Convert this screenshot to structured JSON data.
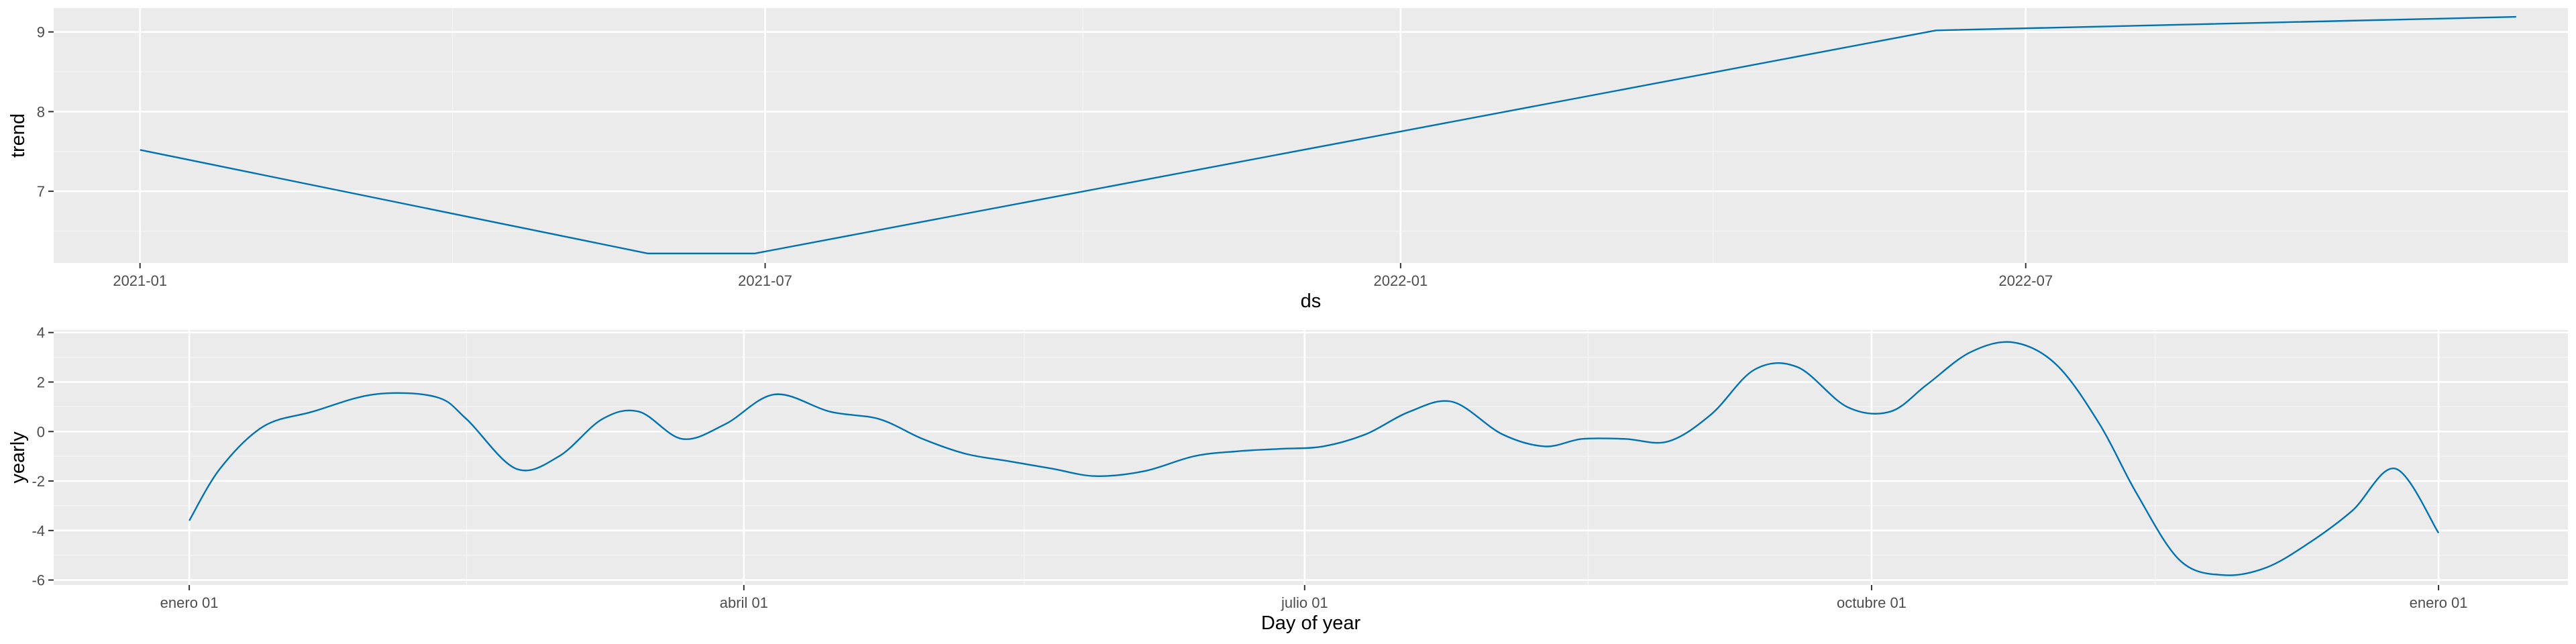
{
  "chart_data": [
    {
      "type": "line",
      "xlabel": "ds",
      "ylabel": "trend",
      "x_type": "date",
      "xlim": [
        "2020-12-07",
        "2022-12-05"
      ],
      "ylim": [
        6.1,
        9.3
      ],
      "x_ticks": [
        "2021-01-01",
        "2021-07-01",
        "2022-01-01",
        "2022-07-01"
      ],
      "x_tick_labels": [
        "2021-01",
        "2021-07",
        "2022-01",
        "2022-07"
      ],
      "y_ticks": [
        7,
        8,
        9
      ],
      "y_tick_labels": [
        "7",
        "8",
        "9"
      ],
      "grid": true,
      "series": [
        {
          "x": [
            "2021-01-01",
            "2021-05-28",
            "2021-06-28",
            "2022-06-05",
            "2022-11-20"
          ],
          "y": [
            7.52,
            6.22,
            6.22,
            9.02,
            9.19
          ]
        }
      ]
    },
    {
      "type": "line",
      "xlabel": "Day of year",
      "ylabel": "yearly",
      "x_type": "day_of_year",
      "xlim": [
        -22,
        386
      ],
      "ylim": [
        -6.2,
        4.1
      ],
      "x_ticks": [
        0,
        90,
        181,
        273,
        365
      ],
      "x_tick_labels": [
        "enero 01",
        "abril 01",
        "julio 01",
        "octubre 01",
        "enero 01"
      ],
      "y_ticks": [
        -6,
        -4,
        -2,
        0,
        2,
        4
      ],
      "y_tick_labels": [
        "-6",
        "-4",
        "-2",
        "0",
        "2",
        "4"
      ],
      "grid": true,
      "series": [
        {
          "x": [
            0,
            5,
            12,
            20,
            30,
            40,
            45,
            53,
            60,
            67,
            73,
            80,
            87,
            95,
            104,
            112,
            119,
            126,
            133,
            140,
            147,
            155,
            163,
            170,
            177,
            184,
            191,
            198,
            205,
            213,
            220,
            226,
            233,
            240,
            247,
            254,
            261,
            269,
            276,
            282,
            289,
            296,
            303,
            310,
            316,
            323,
            330,
            337,
            344,
            351,
            358,
            365
          ],
          "y": [
            -3.6,
            -1.5,
            0.2,
            0.8,
            1.5,
            1.4,
            0.5,
            -1.5,
            -1.0,
            0.5,
            0.8,
            -0.3,
            0.3,
            1.5,
            0.8,
            0.5,
            -0.3,
            -0.9,
            -1.2,
            -1.5,
            -1.8,
            -1.6,
            -1.0,
            -0.8,
            -0.7,
            -0.6,
            -0.1,
            0.8,
            1.2,
            -0.1,
            -0.6,
            -0.3,
            -0.3,
            -0.4,
            0.7,
            2.5,
            2.6,
            1.0,
            0.8,
            1.9,
            3.2,
            3.6,
            2.7,
            0.3,
            -2.5,
            -5.2,
            -5.8,
            -5.5,
            -4.5,
            -3.2,
            -1.5,
            -4.1
          ]
        }
      ]
    }
  ]
}
